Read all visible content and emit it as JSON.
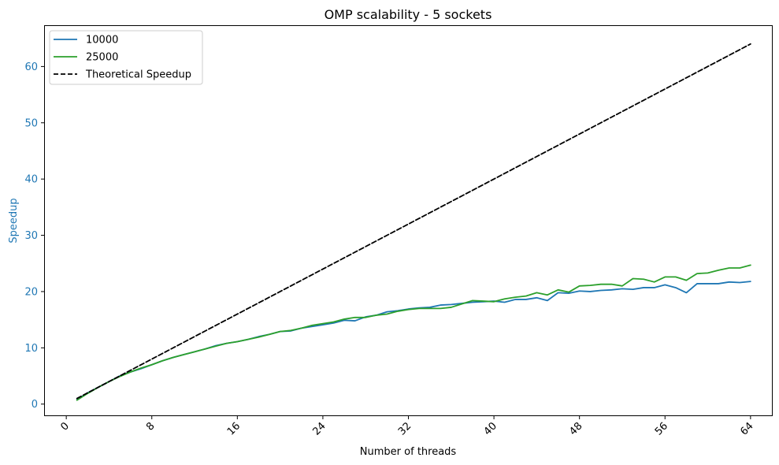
{
  "chart_data": {
    "type": "line",
    "title": "OMP scalability - 5 sockets",
    "xlabel": "Number of threads",
    "ylabel": "Speedup",
    "xlim": [
      -2,
      66
    ],
    "ylim": [
      -2,
      67.2
    ],
    "xticks": [
      0,
      8,
      16,
      24,
      32,
      40,
      48,
      56,
      64
    ],
    "yticks": [
      0,
      10,
      20,
      30,
      40,
      50,
      60
    ],
    "xtick_rotation": 45,
    "grid": false,
    "legend_position": "top-left",
    "colors": {
      "ylabel": "#1f77b4",
      "yticks": "#1f77b4"
    },
    "x": [
      1,
      2,
      3,
      4,
      5,
      6,
      7,
      8,
      9,
      10,
      11,
      12,
      13,
      14,
      15,
      16,
      17,
      18,
      19,
      20,
      21,
      22,
      23,
      24,
      25,
      26,
      27,
      28,
      29,
      30,
      31,
      32,
      33,
      34,
      35,
      36,
      37,
      38,
      39,
      40,
      41,
      42,
      43,
      44,
      45,
      46,
      47,
      48,
      49,
      50,
      51,
      52,
      53,
      54,
      55,
      56,
      57,
      58,
      59,
      60,
      61,
      62,
      63,
      64
    ],
    "series": [
      {
        "name": "10000",
        "color": "#1f77b4",
        "dash": "solid",
        "values": [
          0.8,
          2.0,
          3.0,
          4.0,
          5.0,
          5.7,
          6.3,
          7.0,
          7.7,
          8.3,
          8.8,
          9.3,
          9.8,
          10.4,
          10.8,
          11.1,
          11.5,
          12.0,
          12.4,
          12.9,
          13.0,
          13.5,
          13.8,
          14.1,
          14.4,
          14.9,
          14.8,
          15.5,
          15.8,
          16.4,
          16.6,
          16.9,
          17.1,
          17.2,
          17.6,
          17.7,
          17.9,
          18.1,
          18.2,
          18.3,
          18.1,
          18.6,
          18.6,
          18.9,
          18.4,
          19.8,
          19.7,
          20.1,
          20.0,
          20.2,
          20.3,
          20.5,
          20.4,
          20.7,
          20.7,
          21.2,
          20.7,
          19.8,
          21.4,
          21.4,
          21.4,
          21.7,
          21.6,
          21.8
        ]
      },
      {
        "name": "25000",
        "color": "#2ca02c",
        "dash": "solid",
        "values": [
          0.7,
          1.9,
          3.0,
          4.0,
          4.9,
          5.7,
          6.4,
          7.0,
          7.7,
          8.3,
          8.8,
          9.3,
          9.8,
          10.3,
          10.8,
          11.1,
          11.5,
          11.9,
          12.4,
          12.9,
          13.1,
          13.5,
          14.0,
          14.3,
          14.6,
          15.1,
          15.4,
          15.4,
          15.8,
          16.0,
          16.5,
          16.8,
          17.0,
          17.0,
          17.0,
          17.2,
          17.8,
          18.4,
          18.3,
          18.2,
          18.7,
          19.0,
          19.2,
          19.8,
          19.4,
          20.3,
          19.9,
          21.0,
          21.1,
          21.3,
          21.3,
          21.0,
          22.3,
          22.2,
          21.7,
          22.6,
          22.6,
          22.0,
          23.2,
          23.3,
          23.8,
          24.2,
          24.2,
          24.7
        ]
      },
      {
        "name": "Theoretical Speedup",
        "color": "#000000",
        "dash": "dashed",
        "values": [
          1,
          64
        ],
        "x": [
          1,
          64
        ]
      }
    ]
  }
}
